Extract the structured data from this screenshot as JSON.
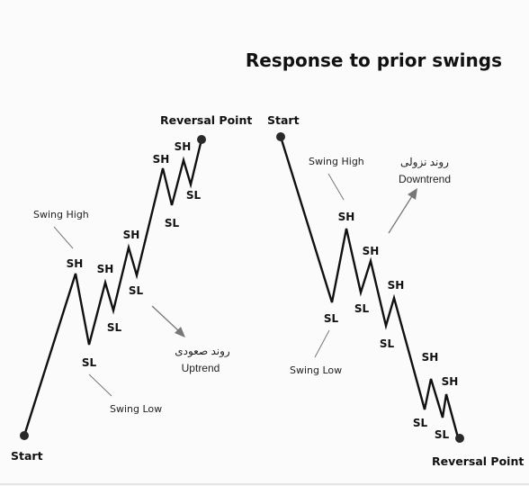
{
  "title": "Response to prior swings",
  "uptrend": {
    "start_label": "Start",
    "reversal_label": "Reversal Point",
    "swing_high_label": "Swing High",
    "swing_low_label": "Swing Low",
    "trend_label_fa": "روند صعودی",
    "trend_label_en": "Uptrend",
    "sh": [
      "SH",
      "SH",
      "SH",
      "SH",
      "SH"
    ],
    "sl": [
      "SL",
      "SL",
      "SL",
      "SL",
      "SL"
    ]
  },
  "downtrend": {
    "start_label": "Start",
    "reversal_label": "Reversal Point",
    "swing_high_label": "Swing High",
    "swing_low_label": "Swing Low",
    "trend_label_fa": "روند نزولی",
    "trend_label_en": "Downtrend",
    "sh": [
      "SH",
      "SH",
      "SH",
      "SH",
      "SH"
    ],
    "sl": [
      "SL",
      "SL",
      "SL",
      "SL",
      "SL"
    ]
  },
  "colors": {
    "line": "#111111",
    "pointer": "#777777",
    "dot": "#2a2a2a",
    "background": "#fbfbfb"
  }
}
